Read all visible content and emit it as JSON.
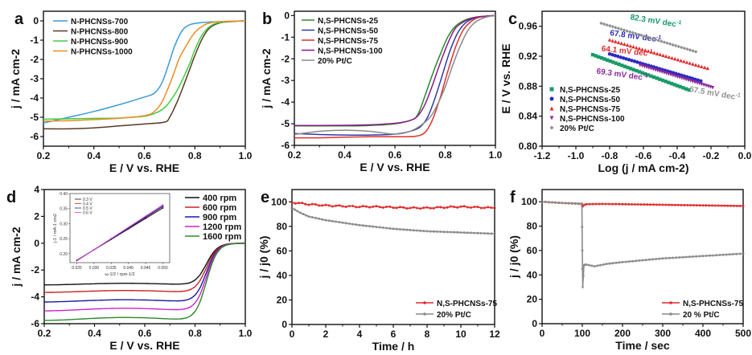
{
  "chart_data": [
    {
      "panel": "a",
      "type": "line",
      "xlabel": "E / V vs. RHE",
      "ylabel": "j / mA cm-2",
      "xlim": [
        0.2,
        1.0
      ],
      "ylim": [
        -6.5,
        0.5
      ],
      "xticks": [
        0.2,
        0.4,
        0.6,
        0.8,
        1.0
      ],
      "xtick_labels": [
        "0.2",
        "0.4",
        "0.6",
        "0.8",
        "1.0"
      ],
      "yticks": [
        0,
        -1,
        -2,
        -3,
        -4,
        -5,
        -6
      ],
      "ytick_labels": [
        "0",
        "-1",
        "-2",
        "-3",
        "-4",
        "-5",
        "-6"
      ],
      "legend_position": "top-left",
      "series": [
        {
          "name": "N-PHCNSs-700",
          "color": "#3b9bd6",
          "x": [
            0.2,
            0.3,
            0.4,
            0.5,
            0.6,
            0.64,
            0.67,
            0.7,
            0.72,
            0.75,
            0.78,
            0.82,
            0.86,
            0.9,
            0.95,
            1.0
          ],
          "y": [
            -5.3,
            -5.0,
            -4.7,
            -4.35,
            -3.95,
            -3.75,
            -3.2,
            -2.1,
            -1.3,
            -0.5,
            -0.2,
            -0.1,
            -0.06,
            -0.04,
            -0.02,
            0.0
          ]
        },
        {
          "name": "N-PHCNSs-800",
          "color": "#5a3a26",
          "x": [
            0.2,
            0.3,
            0.4,
            0.5,
            0.6,
            0.68,
            0.7,
            0.73,
            0.76,
            0.78,
            0.8,
            0.83,
            0.86,
            0.9,
            0.95,
            1.0
          ],
          "y": [
            -5.6,
            -5.6,
            -5.55,
            -5.45,
            -5.35,
            -5.25,
            -5.0,
            -4.2,
            -3.2,
            -2.5,
            -1.8,
            -0.9,
            -0.35,
            -0.1,
            -0.03,
            0.0
          ]
        },
        {
          "name": "N-PHCNSs-900",
          "color": "#3fcf3f",
          "x": [
            0.2,
            0.3,
            0.4,
            0.5,
            0.6,
            0.65,
            0.68,
            0.7,
            0.73,
            0.76,
            0.78,
            0.8,
            0.83,
            0.87,
            0.92,
            1.0
          ],
          "y": [
            -5.1,
            -5.08,
            -5.06,
            -5.04,
            -4.95,
            -4.75,
            -4.5,
            -4.2,
            -3.6,
            -2.8,
            -2.2,
            -1.5,
            -0.7,
            -0.2,
            -0.05,
            0.0
          ]
        },
        {
          "name": "N-PHCNSs-1000",
          "color": "#f08a24",
          "x": [
            0.2,
            0.3,
            0.4,
            0.5,
            0.6,
            0.64,
            0.67,
            0.7,
            0.72,
            0.74,
            0.77,
            0.8,
            0.84,
            0.88,
            0.93,
            1.0
          ],
          "y": [
            -5.2,
            -5.18,
            -5.12,
            -5.05,
            -4.92,
            -4.7,
            -4.2,
            -3.3,
            -2.6,
            -1.9,
            -1.2,
            -0.6,
            -0.2,
            -0.06,
            -0.02,
            0.0
          ]
        }
      ]
    },
    {
      "panel": "b",
      "type": "line",
      "xlabel": "E / V vs. RHE",
      "ylabel": "j / mA cm-2",
      "xlim": [
        0.2,
        1.0
      ],
      "ylim": [
        -6,
        0.2
      ],
      "xticks": [
        0.2,
        0.4,
        0.6,
        0.8,
        1.0
      ],
      "xtick_labels": [
        "0.2",
        "0.4",
        "0.6",
        "0.8",
        "1.0"
      ],
      "yticks": [
        0,
        -1,
        -2,
        -3,
        -4,
        -5,
        -6
      ],
      "ytick_labels": [
        "0",
        "-1",
        "-2",
        "-3",
        "-4",
        "-5",
        "-6"
      ],
      "legend_position": "top-left",
      "series": [
        {
          "name": "N,S-PHCNSs-25",
          "color": "#2a8a2a",
          "x": [
            0.2,
            0.3,
            0.4,
            0.5,
            0.6,
            0.66,
            0.69,
            0.72,
            0.75,
            0.78,
            0.81,
            0.84,
            0.88,
            0.92,
            0.96,
            1.0
          ],
          "y": [
            -5.1,
            -5.1,
            -5.1,
            -5.08,
            -5.0,
            -4.85,
            -4.6,
            -3.7,
            -2.7,
            -1.8,
            -1.0,
            -0.5,
            -0.2,
            -0.08,
            -0.03,
            0.0
          ]
        },
        {
          "name": "N,S-PHCNSs-50",
          "color": "#2e3aa8",
          "x": [
            0.2,
            0.3,
            0.4,
            0.5,
            0.6,
            0.66,
            0.7,
            0.73,
            0.76,
            0.79,
            0.82,
            0.85,
            0.88,
            0.92,
            0.96,
            1.0
          ],
          "y": [
            -5.45,
            -5.5,
            -5.52,
            -5.52,
            -5.48,
            -5.35,
            -5.15,
            -4.7,
            -3.8,
            -2.7,
            -1.6,
            -0.8,
            -0.35,
            -0.1,
            -0.03,
            0.0
          ]
        },
        {
          "name": "N,S-PHCNSs-75",
          "color": "#e0302a",
          "x": [
            0.2,
            0.3,
            0.4,
            0.5,
            0.6,
            0.68,
            0.72,
            0.75,
            0.78,
            0.81,
            0.84,
            0.87,
            0.9,
            0.93,
            0.96,
            1.0
          ],
          "y": [
            -5.65,
            -5.65,
            -5.62,
            -5.6,
            -5.6,
            -5.58,
            -5.4,
            -4.8,
            -3.8,
            -2.6,
            -1.5,
            -0.7,
            -0.3,
            -0.1,
            -0.03,
            0.0
          ]
        },
        {
          "name": "N,S-PHCNSs-100",
          "color": "#8a1a8a",
          "x": [
            0.2,
            0.3,
            0.4,
            0.5,
            0.6,
            0.66,
            0.69,
            0.72,
            0.75,
            0.78,
            0.81,
            0.84,
            0.88,
            0.92,
            0.96,
            1.0
          ],
          "y": [
            -5.08,
            -5.08,
            -5.07,
            -5.05,
            -4.98,
            -4.85,
            -4.65,
            -4.1,
            -3.2,
            -2.2,
            -1.3,
            -0.6,
            -0.25,
            -0.08,
            -0.03,
            0.0
          ]
        },
        {
          "name": "20% Pt/C",
          "color": "#8a8a8a",
          "x": [
            0.2,
            0.3,
            0.4,
            0.5,
            0.6,
            0.66,
            0.7,
            0.74,
            0.77,
            0.8,
            0.83,
            0.86,
            0.89,
            0.92,
            0.96,
            1.0
          ],
          "y": [
            -5.5,
            -5.35,
            -5.3,
            -5.35,
            -5.48,
            -5.35,
            -5.1,
            -4.7,
            -4.1,
            -3.3,
            -2.3,
            -1.4,
            -0.7,
            -0.3,
            -0.08,
            0.0
          ]
        }
      ]
    },
    {
      "panel": "c",
      "type": "scatter",
      "xlabel": "Log (j / mA cm-2)",
      "ylabel": "E / V vs. RHE",
      "xlim": [
        -1.2,
        0.0
      ],
      "ylim": [
        0.8,
        0.98
      ],
      "xticks": [
        -1.2,
        -1.0,
        -0.8,
        -0.6,
        -0.4,
        -0.2,
        0.0
      ],
      "xtick_labels": [
        "-1.2",
        "-1.0",
        "-0.8",
        "-0.6",
        "-0.4",
        "-0.2",
        "0.0"
      ],
      "yticks": [
        0.8,
        0.84,
        0.88,
        0.92,
        0.96
      ],
      "ytick_labels": [
        "0.80",
        "0.84",
        "0.88",
        "0.92",
        "0.96"
      ],
      "legend_position": "bottom-left",
      "series": [
        {
          "name": "N,S-PHCNSs-25",
          "color": "#1a9a6a",
          "marker": "square",
          "x_range": [
            -0.9,
            -0.33
          ],
          "y_range": [
            0.922,
            0.875
          ],
          "annotation": "82.3 mV dec-1"
        },
        {
          "name": "N,S-PHCNSs-50",
          "color": "#2a2ac0",
          "marker": "circle",
          "x_range": [
            -0.8,
            -0.26
          ],
          "y_range": [
            0.923,
            0.887
          ],
          "annotation": "67.8 mV dec-1"
        },
        {
          "name": "N,S-PHCNSs-75",
          "color": "#e02a2a",
          "marker": "triangle-up",
          "x_range": [
            -0.8,
            -0.22
          ],
          "y_range": [
            0.942,
            0.904
          ],
          "annotation": "64.1 mV dec-1"
        },
        {
          "name": "N,S-PHCNSs-100",
          "color": "#8a2a9a",
          "marker": "triangle-down",
          "x_range": [
            -0.62,
            -0.19
          ],
          "y_range": [
            0.908,
            0.878
          ],
          "annotation": "69.3 mV dec-1"
        },
        {
          "name": "20% Pt/C",
          "color": "#909090",
          "marker": "diamond",
          "x_range": [
            -0.85,
            -0.29
          ],
          "y_range": [
            0.964,
            0.926
          ],
          "annotation": "67.5 mV dec-1"
        }
      ]
    },
    {
      "panel": "d",
      "type": "line",
      "xlabel": "E / V vs. RHE",
      "ylabel": "j / mA cm-2",
      "xlim": [
        0.2,
        1.0
      ],
      "ylim": [
        -6,
        4
      ],
      "xticks": [
        0.2,
        0.4,
        0.6,
        0.8,
        1.0
      ],
      "xtick_labels": [
        "0.2",
        "0.4",
        "0.6",
        "0.8",
        "1.0"
      ],
      "yticks": [
        4,
        2,
        0,
        -2,
        -4,
        -6
      ],
      "ytick_labels": [
        "4",
        "2",
        "0",
        "-2",
        "-4",
        "-6"
      ],
      "legend_position": "top-right",
      "series": [
        {
          "name": "400 rpm",
          "color": "#111111",
          "plateau": -3.05,
          "knee": 0.78
        },
        {
          "name": "600 rpm",
          "color": "#cc2222",
          "plateau": -3.6,
          "knee": 0.77
        },
        {
          "name": "900 rpm",
          "color": "#1a1aa0",
          "plateau": -4.3,
          "knee": 0.76
        },
        {
          "name": "1200 rpm",
          "color": "#cc22cc",
          "plateau": -4.95,
          "knee": 0.74
        },
        {
          "name": "1600 rpm",
          "color": "#2a8a2a",
          "plateau": -5.65,
          "knee": 0.72
        }
      ],
      "inset": {
        "type": "line",
        "xlabel": "ω-1/2 / rpm-1/2",
        "ylabel": "j-1 / mA-1 cm2",
        "xlim": [
          0.023,
          0.052
        ],
        "ylim": [
          0.17,
          0.4
        ],
        "xticks": [
          0.025,
          0.03,
          0.035,
          0.04,
          0.045,
          0.05
        ],
        "xtick_labels": [
          "0.025",
          "0.030",
          "0.035",
          "0.040",
          "0.045",
          "0.050"
        ],
        "yticks": [
          0.2,
          0.25,
          0.3,
          0.35,
          0.4
        ],
        "ytick_labels": [
          "0.20",
          "0.25",
          "0.30",
          "0.35",
          "0.40"
        ],
        "series": [
          {
            "name": "0.3 V",
            "color": "#111111",
            "x": [
              0.025,
              0.05
            ],
            "y": [
              0.178,
              0.352
            ]
          },
          {
            "name": "0.4 V",
            "color": "#cc2222",
            "x": [
              0.025,
              0.05
            ],
            "y": [
              0.177,
              0.357
            ]
          },
          {
            "name": "0.5 V",
            "color": "#1a1aa0",
            "x": [
              0.025,
              0.05
            ],
            "y": [
              0.177,
              0.358
            ]
          },
          {
            "name": "0.6 V",
            "color": "#cc44cc",
            "x": [
              0.025,
              0.05
            ],
            "y": [
              0.176,
              0.362
            ]
          }
        ]
      }
    },
    {
      "panel": "e",
      "type": "line",
      "xlabel": "Time / h",
      "ylabel": "j / j0 (%)",
      "xlim": [
        0,
        12
      ],
      "ylim": [
        0,
        110
      ],
      "xticks": [
        0,
        2,
        4,
        6,
        8,
        10,
        12
      ],
      "xtick_labels": [
        "0",
        "2",
        "4",
        "6",
        "8",
        "10",
        "12"
      ],
      "yticks": [
        0,
        20,
        40,
        60,
        80,
        100
      ],
      "ytick_labels": [
        "0",
        "20",
        "40",
        "60",
        "80",
        "100"
      ],
      "legend_position": "bottom-right",
      "series": [
        {
          "name": "N,S-PHCNSs-75",
          "color": "#e02a2a",
          "x": [
            0,
            1,
            2,
            3,
            4,
            5,
            6,
            7,
            8,
            9,
            10,
            11,
            12
          ],
          "y": [
            99.5,
            98,
            97,
            96.5,
            96,
            96,
            95.5,
            95,
            95,
            95.5,
            96,
            95.5,
            95
          ]
        },
        {
          "name": "20% Pt/C",
          "color": "#8a8a8a",
          "x": [
            0,
            0.5,
            1,
            2,
            3,
            4,
            5,
            6,
            7,
            8,
            9,
            10,
            11,
            12
          ],
          "y": [
            95,
            91,
            88,
            85,
            83,
            81,
            79.5,
            78,
            77,
            76,
            75.5,
            75,
            74.5,
            74
          ]
        }
      ]
    },
    {
      "panel": "f",
      "type": "line",
      "xlabel": "Time / sec",
      "ylabel": "j / j0 (%)",
      "xlim": [
        0,
        500
      ],
      "ylim": [
        0,
        110
      ],
      "xticks": [
        0,
        100,
        200,
        300,
        400,
        500
      ],
      "xtick_labels": [
        "0",
        "100",
        "200",
        "300",
        "400",
        "500"
      ],
      "yticks": [
        0,
        20,
        40,
        60,
        80,
        100
      ],
      "ytick_labels": [
        "0",
        "20",
        "40",
        "60",
        "80",
        "100"
      ],
      "legend_position": "bottom-right",
      "series": [
        {
          "name": "N,S-PHCNSs-75",
          "color": "#e02a2a",
          "x": [
            0,
            50,
            99,
            100,
            102,
            110,
            150,
            200,
            300,
            400,
            500
          ],
          "y": [
            100,
            99,
            98.2,
            96,
            97,
            98,
            98.2,
            98,
            97.5,
            97,
            96.5
          ]
        },
        {
          "name": "20 % Pt/C",
          "color": "#8a8a8a",
          "x": [
            0,
            50,
            99,
            100,
            101,
            104,
            110,
            130,
            160,
            200,
            250,
            300,
            350,
            400,
            450,
            500
          ],
          "y": [
            100,
            99,
            98.5,
            60,
            30,
            48,
            48.5,
            47,
            49,
            50.5,
            52,
            53.5,
            54.5,
            55.5,
            56.5,
            57.5
          ]
        }
      ]
    }
  ],
  "panel_labels": [
    "a",
    "b",
    "c",
    "d",
    "e",
    "f"
  ],
  "annotations_c": [
    "67.5 mV dec",
    "64.1 mV dec",
    "67.8 mV dec",
    "82.3 mV dec",
    "69.3 mV dec"
  ]
}
